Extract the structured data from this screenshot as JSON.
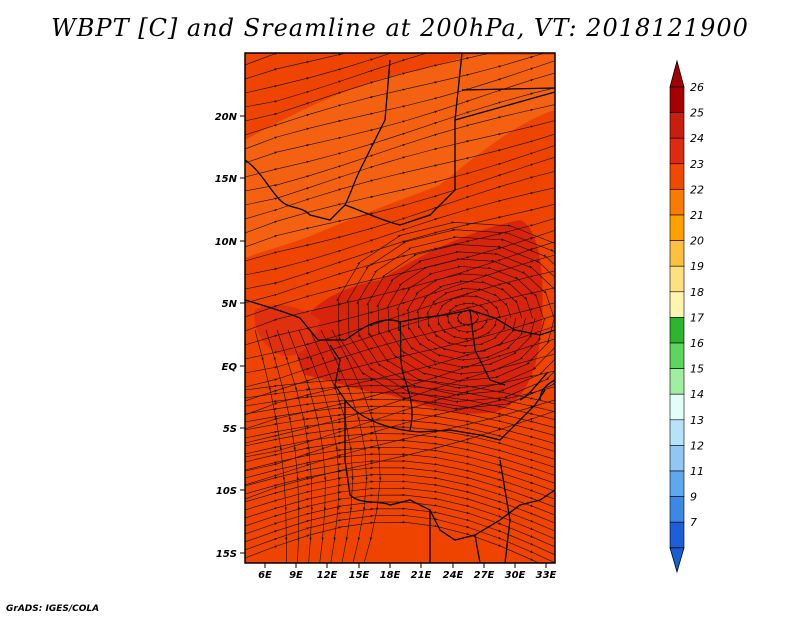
{
  "title": "WBPT [C] and Sreamline at 200hPa, VT: 2018121900",
  "footer": "GrADS: IGES/COLA",
  "lat_labels": [
    "20N",
    "15N",
    "10N",
    "5N",
    "EQ",
    "5S",
    "10S",
    "15S"
  ],
  "lon_labels": [
    "6E",
    "9E",
    "12E",
    "15E",
    "18E",
    "21E",
    "24E",
    "27E",
    "30E",
    "33E"
  ],
  "colorbar": {
    "labels": [
      "26",
      "25",
      "24",
      "23",
      "22",
      "21",
      "20",
      "19",
      "18",
      "17",
      "16",
      "15",
      "14",
      "13",
      "12",
      "11",
      "9",
      "7"
    ],
    "colors": [
      "#a80000",
      "#c81e0f",
      "#dd2a10",
      "#f04a00",
      "#fa7b00",
      "#ffa000",
      "#ffc040",
      "#ffe080",
      "#fff5b0",
      "#2db52d",
      "#5cd65c",
      "#a0eea0",
      "#e0fff8",
      "#b7e3fa",
      "#8fc8f5",
      "#5ea8ee",
      "#3c88e6",
      "#1c5fd8"
    ],
    "max_arrow_color": "#a00000",
    "min_arrow_color": "#1560d6"
  },
  "map_colors": {
    "base": "#ee4400",
    "cool_band": "#f46110",
    "warm_core": "#d8240c"
  }
}
